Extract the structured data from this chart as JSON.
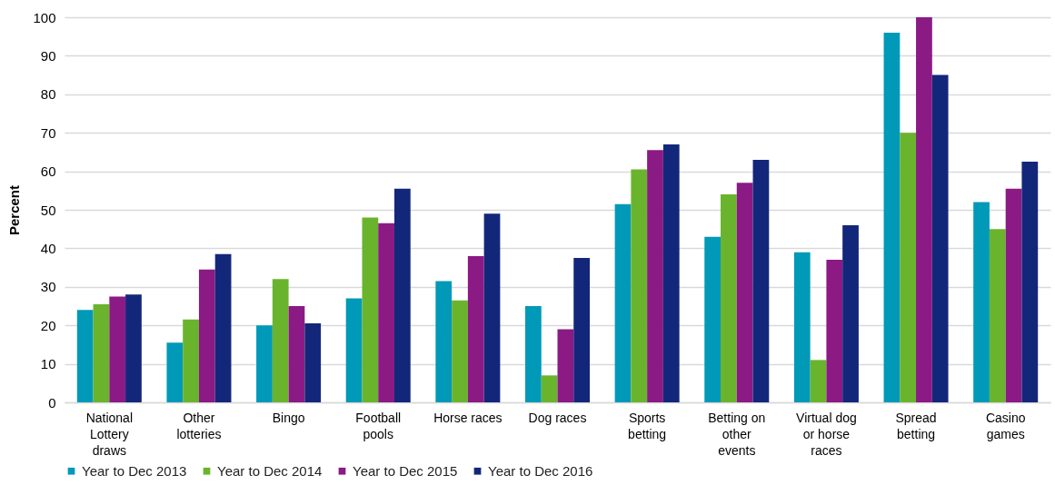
{
  "chart_data": {
    "type": "bar",
    "ylabel": "Percent",
    "categories": [
      "National Lottery draws",
      "Other lotteries",
      "Bingo",
      "Football pools",
      "Horse races",
      "Dog races",
      "Sports betting",
      "Betting on other events",
      "Virtual dog or horse races",
      "Spread betting",
      "Casino games"
    ],
    "series": [
      {
        "name": "Year to Dec 2013",
        "color": "#0099b8",
        "values": [
          24,
          15.5,
          20,
          27,
          31.5,
          25,
          51.5,
          43,
          39,
          96,
          52
        ]
      },
      {
        "name": "Year to Dec 2014",
        "color": "#6ab42d",
        "values": [
          25.5,
          21.5,
          32,
          48,
          26.5,
          7,
          60.5,
          54,
          11,
          70,
          45
        ]
      },
      {
        "name": "Year to Dec 2015",
        "color": "#8b1a85",
        "values": [
          27.5,
          34.5,
          25,
          46.5,
          38,
          19,
          65.5,
          57,
          37,
          100,
          55.5
        ]
      },
      {
        "name": "Year to Dec 2016",
        "color": "#13277a",
        "values": [
          28,
          38.5,
          20.5,
          55.5,
          49,
          37.5,
          67,
          63,
          46,
          85,
          62.5
        ]
      }
    ],
    "ylim": [
      0,
      100
    ],
    "yticks": [
      0,
      10,
      20,
      30,
      40,
      50,
      60,
      70,
      80,
      90,
      100
    ],
    "grid": "y",
    "legend": "bottom"
  }
}
